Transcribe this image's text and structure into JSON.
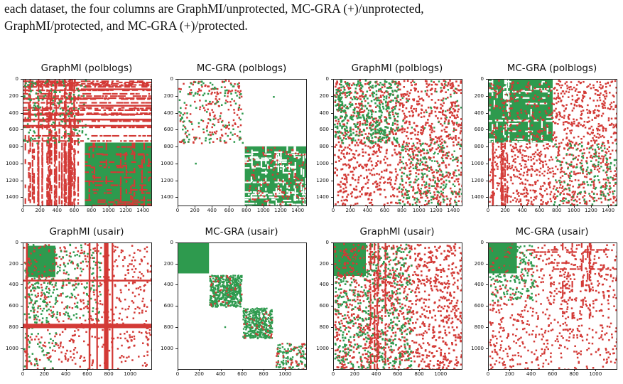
{
  "caption": {
    "line1": "each dataset, the four columns are GraphMI/unprotected, MC-GRA (+)/unprotected,",
    "line2": "GraphMI/protected, and MC-GRA (+)/protected."
  },
  "colors": {
    "red": "#d33a36",
    "green": "#2e9a4e"
  },
  "chart_data": [
    {
      "type": "heatmap",
      "title": "GraphMI (polblogs)",
      "dataset": "polblogs",
      "pattern": "graphmi_unprot",
      "xticks": [
        "0",
        "200",
        "400",
        "600",
        "800",
        "1000",
        "1200",
        "1400"
      ],
      "yticks": [
        "0",
        "200",
        "400",
        "600",
        "800",
        "1000",
        "1200",
        "1400"
      ],
      "xlim": [
        0,
        1490
      ],
      "ylim": [
        1490,
        0
      ]
    },
    {
      "type": "heatmap",
      "title": "MC-GRA (polblogs)",
      "dataset": "polblogs",
      "pattern": "mcgra_unprot",
      "xticks": [
        "0",
        "200",
        "400",
        "600",
        "800",
        "1000",
        "1200",
        "1400"
      ],
      "yticks": [
        "0",
        "200",
        "400",
        "600",
        "800",
        "1000",
        "1200",
        "1400"
      ],
      "xlim": [
        0,
        1490
      ],
      "ylim": [
        1490,
        0
      ]
    },
    {
      "type": "heatmap",
      "title": "GraphMI (polblogs)",
      "dataset": "polblogs",
      "pattern": "graphmi_prot",
      "xticks": [
        "0",
        "200",
        "400",
        "600",
        "800",
        "1000",
        "1200",
        "1400"
      ],
      "yticks": [
        "0",
        "200",
        "400",
        "600",
        "800",
        "1000",
        "1200",
        "1400"
      ],
      "xlim": [
        0,
        1490
      ],
      "ylim": [
        1490,
        0
      ]
    },
    {
      "type": "heatmap",
      "title": "MC-GRA (polblogs)",
      "dataset": "polblogs",
      "pattern": "mcgra_prot",
      "xticks": [
        "0",
        "200",
        "400",
        "600",
        "800",
        "1000",
        "1200",
        "1400"
      ],
      "yticks": [
        "0",
        "200",
        "400",
        "600",
        "800",
        "1000",
        "1200",
        "1400"
      ],
      "xlim": [
        0,
        1490
      ],
      "ylim": [
        1490,
        0
      ]
    },
    {
      "type": "heatmap",
      "title": "GraphMI (usair)",
      "dataset": "usair",
      "pattern": "graphmi_unprot",
      "xticks": [
        "0",
        "200",
        "400",
        "600",
        "800",
        "1000"
      ],
      "yticks": [
        "0",
        "200",
        "400",
        "600",
        "800",
        "1000"
      ],
      "xlim": [
        0,
        1190
      ],
      "ylim": [
        1190,
        0
      ]
    },
    {
      "type": "heatmap",
      "title": "MC-GRA (usair)",
      "dataset": "usair",
      "pattern": "mcgra_unprot",
      "xticks": [
        "0",
        "200",
        "400",
        "600",
        "800",
        "1000"
      ],
      "yticks": [
        "0",
        "200",
        "400",
        "600",
        "800",
        "1000"
      ],
      "xlim": [
        0,
        1190
      ],
      "ylim": [
        1190,
        0
      ]
    },
    {
      "type": "heatmap",
      "title": "GraphMI (usair)",
      "dataset": "usair",
      "pattern": "graphmi_prot",
      "xticks": [
        "0",
        "200",
        "400",
        "600",
        "800",
        "1000"
      ],
      "yticks": [
        "0",
        "200",
        "400",
        "600",
        "800",
        "1000"
      ],
      "xlim": [
        0,
        1190
      ],
      "ylim": [
        1190,
        0
      ]
    },
    {
      "type": "heatmap",
      "title": "MC-GRA (usair)",
      "dataset": "usair",
      "pattern": "mcgra_prot",
      "xticks": [
        "0",
        "200",
        "400",
        "600",
        "800",
        "1000"
      ],
      "yticks": [
        "0",
        "200",
        "400",
        "600",
        "800",
        "1000"
      ],
      "xlim": [
        0,
        1190
      ],
      "ylim": [
        1190,
        0
      ]
    }
  ]
}
